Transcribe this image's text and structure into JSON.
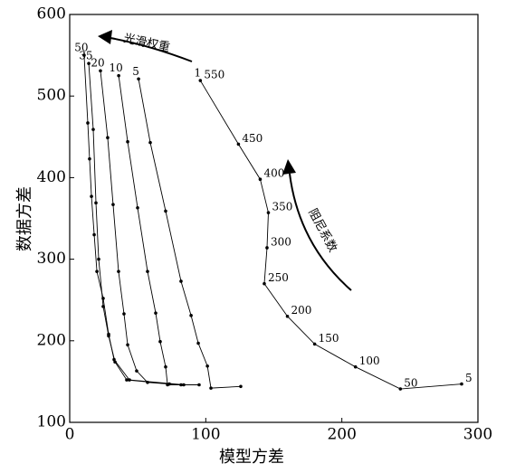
{
  "chart_data": {
    "type": "line",
    "xlabel": "模型方差",
    "ylabel": "数据方差",
    "xlim": [
      0,
      300
    ],
    "ylim": [
      100,
      600
    ],
    "xticks": [
      0,
      100,
      200,
      300
    ],
    "yticks": [
      100,
      200,
      300,
      400,
      500,
      600
    ],
    "grid": false,
    "annotations": [
      "光滑权重",
      "阻尼系数"
    ],
    "series": [
      {
        "name": "50",
        "color": "#000000",
        "x": [
          10.6,
          13.3,
          14.6,
          16,
          18,
          20,
          24.6,
          28.6,
          32.6,
          43.9,
          83.8
        ],
        "values": [
          550,
          467,
          423,
          377,
          330,
          285,
          252,
          208,
          177,
          152,
          146
        ]
      },
      {
        "name": "35",
        "color": "#000000",
        "x": [
          14,
          17.3,
          19.3,
          21.3,
          24.6,
          28.6,
          33.3,
          41.9,
          73.2
        ],
        "values": [
          540,
          459,
          369,
          300,
          242,
          206,
          174,
          152,
          147
        ]
      },
      {
        "name": "20",
        "color": "#000000",
        "x": [
          22.6,
          27.9,
          31.9,
          35.9,
          39.9,
          42.6,
          49.2,
          57.2,
          81.8
        ],
        "values": [
          531,
          449,
          367,
          285,
          233,
          195,
          163,
          149,
          146
        ]
      },
      {
        "name": "10",
        "color": "#000000",
        "x": [
          36,
          42.6,
          49.9,
          57.2,
          63.2,
          66.5,
          70.5,
          71.9,
          95.1
        ],
        "values": [
          525,
          444,
          363,
          285,
          234,
          199,
          168,
          146,
          146
        ]
      },
      {
        "name": "5",
        "color": "#000000",
        "x": [
          50.6,
          59.2,
          70.5,
          81.8,
          89.2,
          94.5,
          101.2,
          103.8,
          125.7
        ],
        "values": [
          521,
          443,
          359,
          273,
          231,
          197,
          169,
          142,
          144
        ]
      },
      {
        "name": "1",
        "color": "#000000",
        "x": [
          96,
          124,
          140,
          146,
          145,
          143,
          160,
          180,
          210,
          243,
          288
        ],
        "values": [
          519,
          441,
          398,
          357,
          314,
          270,
          230,
          196,
          168,
          141,
          147
        ],
        "point_labels": [
          "550",
          "450",
          "400",
          "350",
          "300",
          "250",
          "200",
          "150",
          "100",
          "50",
          "5"
        ]
      }
    ]
  }
}
